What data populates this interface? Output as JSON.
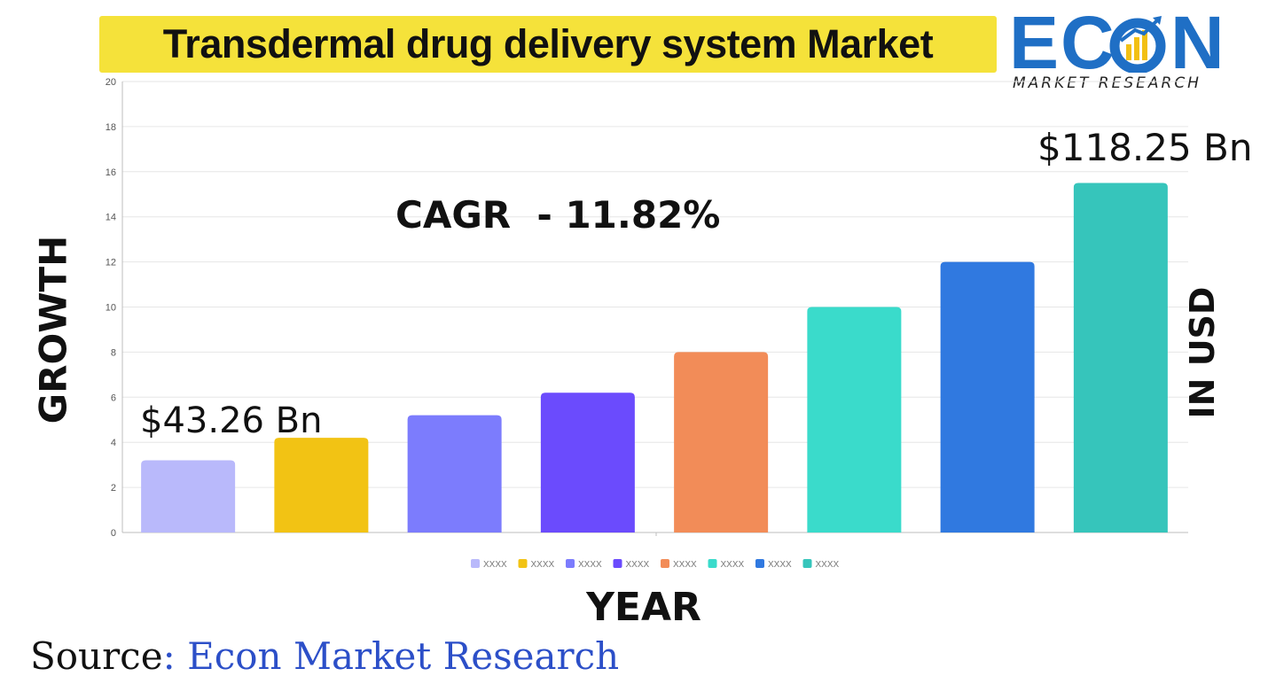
{
  "title": "Transdermal drug delivery system Market",
  "logo": {
    "word_left": "EC",
    "word_right": "N",
    "subtitle": "MARKET RESEARCH",
    "icon": "growth-chart-o-icon",
    "colors": {
      "blue": "#1f6fc5",
      "yellow": "#f2c013"
    }
  },
  "annotations": {
    "cagr": "CAGR  - 11.82%",
    "start_value": "$43.26 Bn",
    "end_value": "$118.25 Bn"
  },
  "axis_labels": {
    "left": "GROWTH",
    "right": "IN USD",
    "bottom": "YEAR"
  },
  "source": {
    "prefix": "Source",
    "name": ": Econ Market Research"
  },
  "chart_data": {
    "type": "bar",
    "categories": [
      "XXXX",
      "XXXX",
      "XXXX",
      "XXXX",
      "XXXX",
      "XXXX",
      "XXXX",
      "XXXX"
    ],
    "values": [
      3.2,
      4.2,
      5.2,
      6.2,
      8.0,
      10.0,
      12.0,
      15.5
    ],
    "colors": [
      "#b9b9fb",
      "#f2c314",
      "#7c7cfd",
      "#6b4bfd",
      "#f28c58",
      "#3adbcb",
      "#3079e0",
      "#36c5bb"
    ],
    "yticks": [
      0,
      2,
      4,
      6,
      8,
      10,
      12,
      14,
      16,
      18,
      20
    ],
    "ylim": [
      0,
      20
    ],
    "grid": true,
    "legend": "bottom",
    "legend_labels": [
      "XXXX",
      "XXXX",
      "XXXX",
      "XXXX",
      "XXXX",
      "XXXX",
      "XXXX",
      "XXXX"
    ]
  }
}
